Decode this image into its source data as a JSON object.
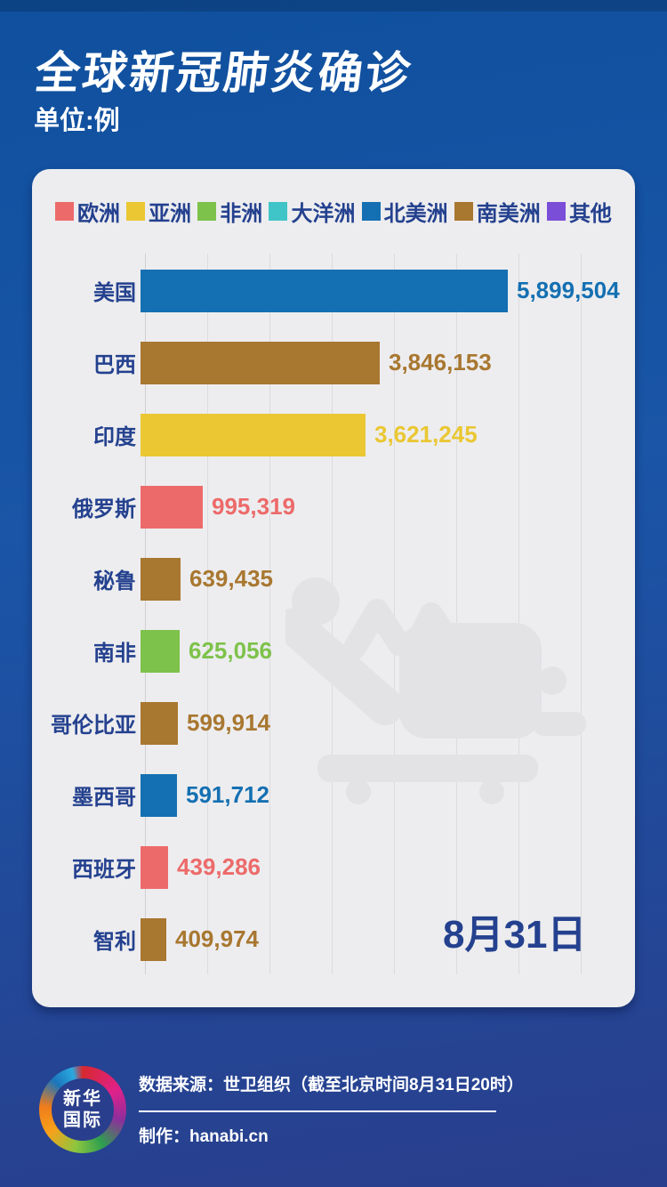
{
  "header": {
    "title": "全球新冠肺炎确诊",
    "unit_label": "单位:例"
  },
  "chart_data": {
    "type": "bar",
    "orientation": "horizontal",
    "title": "全球新冠肺炎确诊",
    "unit": "例",
    "date_label": "8月31日",
    "categories": [
      "美国",
      "巴西",
      "印度",
      "俄罗斯",
      "秘鲁",
      "南非",
      "哥伦比亚",
      "墨西哥",
      "西班牙",
      "智利"
    ],
    "values": [
      5899504,
      3846153,
      3621245,
      995319,
      639435,
      625056,
      599914,
      591712,
      439286,
      409974
    ],
    "value_labels": [
      "5,899,504",
      "3,846,153",
      "3,621,245",
      "995,319",
      "639,435",
      "625,056",
      "599,914",
      "591,712",
      "439,286",
      "409,974"
    ],
    "row_continents": [
      "北美洲",
      "南美洲",
      "亚洲",
      "欧洲",
      "南美洲",
      "非洲",
      "南美洲",
      "北美洲",
      "欧洲",
      "南美洲"
    ],
    "xlim": [
      0,
      7000000
    ],
    "gridline_step": 1000000,
    "gridline_count": 8,
    "grid": true,
    "legend_position": "top",
    "legend": [
      {
        "label": "欧洲",
        "color": "#ED6A6A"
      },
      {
        "label": "亚洲",
        "color": "#EAC733"
      },
      {
        "label": "非洲",
        "color": "#7DC24A"
      },
      {
        "label": "大洋洲",
        "color": "#3FC5C8"
      },
      {
        "label": "北美洲",
        "color": "#1470B2"
      },
      {
        "label": "南美洲",
        "color": "#A87730"
      },
      {
        "label": "其他",
        "color": "#7A4ED6"
      }
    ],
    "continent_colors": {
      "欧洲": "#ED6A6A",
      "亚洲": "#EAC733",
      "非洲": "#7DC24A",
      "大洋洲": "#3FC5C8",
      "北美洲": "#1470B2",
      "南美洲": "#A87730",
      "其他": "#7A4ED6"
    }
  },
  "icons": {
    "watermark": "patient-on-stretcher-icon"
  },
  "footer": {
    "source_label": "数据来源：世卫组织（截至北京时间8月31日20时）",
    "credit_label": "制作：hanabi.cn",
    "logo": {
      "line1": "新华",
      "line2": "国际"
    }
  },
  "colors": {
    "background_top": "#0F509E",
    "background_bottom": "#293E8C",
    "card_background": "#EDEDEF",
    "text_navy": "#24418F",
    "gridline": "#DCDCDE",
    "watermark_gray": "#E3E3E6"
  }
}
